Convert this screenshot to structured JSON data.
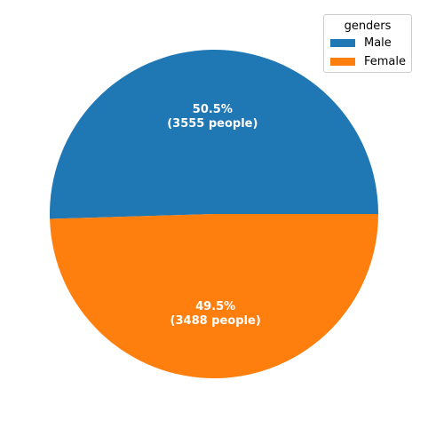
{
  "chart_data": {
    "type": "pie",
    "legend_title": "genders",
    "legend_position": "top-right",
    "slices": [
      {
        "name": "Male",
        "value": 3555,
        "percent_label": "50.5%",
        "count_label": "(3555 people)",
        "color": "#1f77b4"
      },
      {
        "name": "Female",
        "value": 3488,
        "percent_label": "49.5%",
        "count_label": "(3488 people)",
        "color": "#ff7f0e"
      }
    ]
  }
}
